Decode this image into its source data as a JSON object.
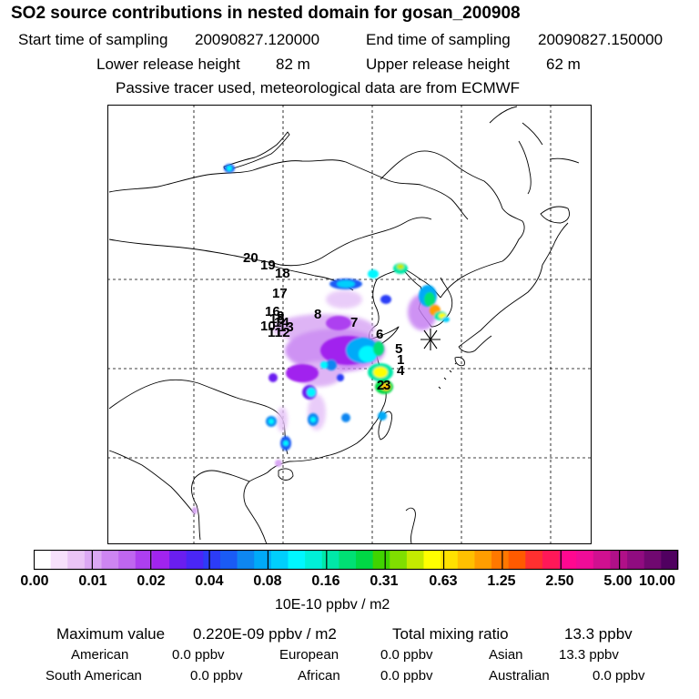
{
  "header": {
    "title": "SO2 source contributions in nested domain for gosan_200908",
    "start_label": "Start time of sampling",
    "start_value": "20090827.120000",
    "end_label": "End time of sampling",
    "end_value": "20090827.150000",
    "lower_label": "Lower release height",
    "lower_value": "82 m",
    "upper_label": "Upper release height",
    "upper_value": "62 m",
    "tracer_note": "Passive tracer used, meteorological data are from ECMWF"
  },
  "map": {
    "station_marker": "asterisk-icon",
    "labels": [
      "20",
      "19",
      "18",
      "17",
      "16",
      "9",
      "8",
      "7",
      "6",
      "5",
      "1",
      "4",
      "2",
      "3",
      "10",
      "11",
      "12",
      "13",
      "14",
      "15"
    ]
  },
  "colorbar": {
    "ticks": [
      "0.00",
      "0.01",
      "0.02",
      "0.04",
      "0.08",
      "0.16",
      "0.31",
      "0.63",
      "1.25",
      "2.50",
      "5.00",
      "10.00"
    ],
    "colors": [
      "#ffffff",
      "#f6e0fb",
      "#eac4f6",
      "#dca8f4",
      "#cd85f2",
      "#bf66f0",
      "#ad3ff0",
      "#a124ee",
      "#6a1ef0",
      "#4a26f6",
      "#2c3cf7",
      "#1a5bf5",
      "#0e86f1",
      "#00aaf8",
      "#00cffc",
      "#00f7ff",
      "#00f0d8",
      "#00e8a8",
      "#00e074",
      "#00d845",
      "#40d400",
      "#80de00",
      "#c4ea00",
      "#ffff00",
      "#ffe100",
      "#ffc000",
      "#ff9d00",
      "#ff7800",
      "#ff5a00",
      "#ff3030",
      "#ff1858",
      "#ff0890",
      "#f00c98",
      "#d01090",
      "#b01088",
      "#900c80",
      "#700870",
      "#500060"
    ],
    "units": "10E-10 ppbv / m2"
  },
  "stats": {
    "max_label": "Maximum value",
    "max_value": "0.220E-09 ppbv / m2",
    "total_label": "Total mixing ratio",
    "total_value": "13.3 ppbv",
    "regions": [
      {
        "name": "American",
        "value": "0.0 ppbv"
      },
      {
        "name": "European",
        "value": "0.0 ppbv"
      },
      {
        "name": "Asian",
        "value": "13.3 ppbv"
      },
      {
        "name": "South American",
        "value": "0.0 ppbv"
      },
      {
        "name": "African",
        "value": "0.0 ppbv"
      },
      {
        "name": "Australian",
        "value": "0.0 ppbv"
      }
    ]
  }
}
